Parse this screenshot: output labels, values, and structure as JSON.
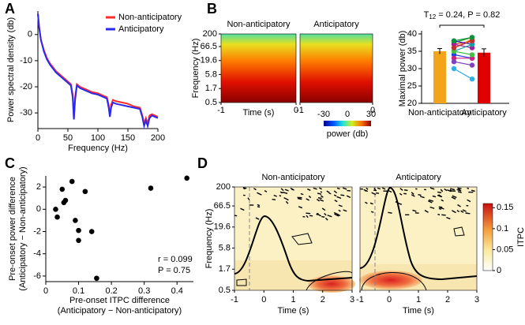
{
  "chart_data": [
    {
      "panel": "A",
      "type": "line",
      "xlabel": "Frequency (Hz)",
      "ylabel": "Power spectral density (db)",
      "x": [
        0,
        2,
        5,
        10,
        15,
        20,
        30,
        40,
        50,
        55,
        58,
        60,
        62,
        65,
        70,
        80,
        90,
        100,
        110,
        115,
        118,
        120,
        122,
        125,
        130,
        140,
        150,
        160,
        170,
        174,
        177,
        180,
        183,
        186,
        190,
        200
      ],
      "series": [
        {
          "name": "Non-anticipatory",
          "color": "#ff2a2a",
          "values": [
            8,
            3,
            -2,
            -6,
            -9,
            -11,
            -14,
            -16,
            -18,
            -19,
            -23,
            -32,
            -24,
            -19,
            -20,
            -21,
            -22,
            -22.5,
            -23.5,
            -24,
            -27,
            -31,
            -27,
            -25,
            -25.5,
            -26,
            -26.5,
            -27.5,
            -28,
            -31,
            -34,
            -32,
            -34,
            -31,
            -30.5,
            -31.5
          ]
        },
        {
          "name": "Anticipatory",
          "color": "#2a2aee",
          "values": [
            8,
            3,
            -2,
            -6.5,
            -9.5,
            -11.5,
            -14.5,
            -16.5,
            -18.5,
            -19.5,
            -24,
            -32.5,
            -25,
            -19.5,
            -20.5,
            -21.5,
            -22.5,
            -23,
            -24,
            -24.5,
            -28,
            -31.5,
            -28,
            -26,
            -26.5,
            -27,
            -27.5,
            -28,
            -28.5,
            -31.5,
            -35,
            -33,
            -35,
            -32,
            -31,
            -32
          ]
        }
      ],
      "xlim": [
        0,
        200
      ],
      "xticks": [
        0,
        50,
        100,
        150,
        200
      ],
      "ylim": [
        -36,
        9
      ],
      "yticks": [
        0,
        -10,
        -20,
        -30
      ],
      "legend": "upper right"
    },
    {
      "panel": "B",
      "type": "heatmap",
      "titles": [
        "Non-anticipatory",
        "Anticipatory"
      ],
      "xlabel": "Time (s)",
      "ylabel": "Frequency (Hz)",
      "xlim": [
        -1,
        0
      ],
      "xticks": [
        -1,
        0
      ],
      "ylim": [
        0.5,
        200
      ],
      "yticks": [
        0.5,
        1.7,
        5.8,
        19.6,
        66.5,
        200
      ],
      "log_y": true,
      "colorbar": {
        "label": "power (db)",
        "lim": [
          -30,
          30
        ],
        "ticks": [
          -30,
          0,
          30
        ]
      }
    },
    {
      "type": "bar",
      "ylabel": "Maximal power (db)",
      "categories": [
        "Non-anticipatory",
        "Anticipatory"
      ],
      "values": [
        35,
        34.6
      ],
      "errors": [
        0.8,
        1.1
      ],
      "colors": [
        "#f2a51a",
        "#e00000"
      ],
      "ylim": [
        20,
        40
      ],
      "yticks": [
        20,
        25,
        30,
        35,
        40
      ],
      "annotation": {
        "stat": "T",
        "df": "12",
        "text": " = 0.24, P = 0.82"
      },
      "subjects": [
        {
          "color": "#e02020",
          "values": [
            37,
            38
          ]
        },
        {
          "color": "#20a020",
          "values": [
            37.5,
            39
          ]
        },
        {
          "color": "#f08020",
          "values": [
            36,
            38.5
          ]
        },
        {
          "color": "#2020d0",
          "values": [
            38,
            37
          ]
        },
        {
          "color": "#a020a0",
          "values": [
            37,
            36
          ]
        },
        {
          "color": "#10a0a0",
          "values": [
            35,
            37
          ]
        },
        {
          "color": "#2040e0",
          "values": [
            34,
            33
          ]
        },
        {
          "color": "#d02080",
          "values": [
            33,
            33
          ]
        },
        {
          "color": "#8040c0",
          "values": [
            32,
            31
          ]
        },
        {
          "color": "#40c040",
          "values": [
            35,
            34
          ]
        },
        {
          "color": "#30b0e0",
          "values": [
            30,
            27
          ]
        },
        {
          "color": "#c03030",
          "values": [
            36,
            38
          ]
        },
        {
          "color": "#109040",
          "values": [
            38,
            39
          ]
        }
      ]
    },
    {
      "panel": "C",
      "type": "scatter",
      "xlabel": [
        "Pre-onset ITPC difference",
        "(Anticipatory − Non-anticipatory)"
      ],
      "ylabel": [
        "Pre-onset power difference",
        "(Anticipatory − Non-anticipatory)"
      ],
      "x": [
        0.03,
        0.035,
        0.05,
        0.055,
        0.06,
        0.08,
        0.09,
        0.1,
        0.1,
        0.12,
        0.14,
        0.155,
        0.32,
        0.43
      ],
      "values": [
        0,
        -0.7,
        1.8,
        0.6,
        0.8,
        2.5,
        -1,
        -2.8,
        -1.9,
        1.6,
        -2,
        -6.2,
        1.9,
        2.8
      ],
      "color": "#000000",
      "xlim": [
        0,
        0.45
      ],
      "xticks": [
        0,
        0.1,
        0.2,
        0.3,
        0.4
      ],
      "ylim": [
        -6.5,
        3
      ],
      "yticks": [
        -6,
        -4,
        -2,
        0,
        2
      ],
      "annotations": [
        "r = 0.099",
        "P = 0.75"
      ]
    },
    {
      "panel": "D",
      "type": "heatmap",
      "titles": [
        "Non-anticipatory",
        "Anticipatory"
      ],
      "xlabel": "Time (s)",
      "ylabel": "Frequency (Hz)",
      "xlim": [
        -1,
        3
      ],
      "xticks": [
        -1,
        0,
        1,
        2,
        3
      ],
      "ylim": [
        0.5,
        200
      ],
      "yticks": [
        0.5,
        1.7,
        5.8,
        19.6,
        66.5,
        200
      ],
      "log_y": true,
      "colorbar": {
        "label": "ITPC",
        "lim": [
          0,
          0.16
        ],
        "ticks": [
          0,
          0.05,
          0.1,
          0.15
        ]
      }
    }
  ]
}
